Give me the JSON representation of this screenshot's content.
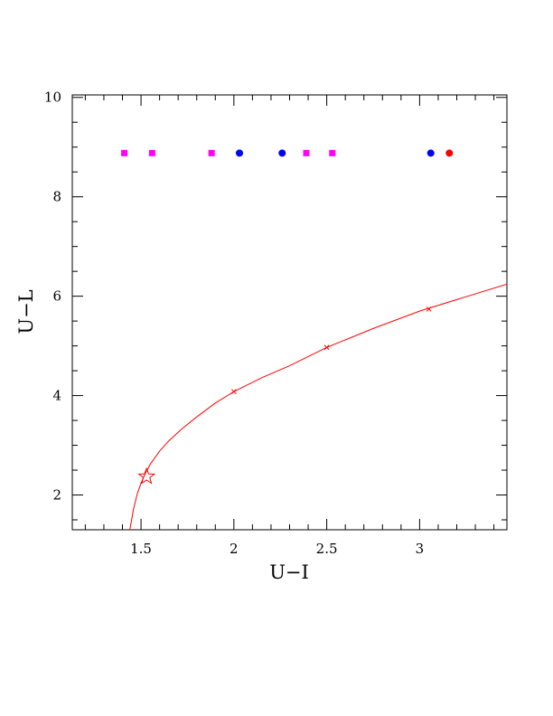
{
  "chart_data": {
    "type": "scatter",
    "xlabel": "U−I",
    "ylabel": "U−L",
    "xlim": [
      1.13,
      3.47
    ],
    "ylim": [
      1.3,
      10.05
    ],
    "x_ticks": [
      1.5,
      2,
      2.5,
      3
    ],
    "x_tick_labels": [
      "1.5",
      "2",
      "2.5",
      "3"
    ],
    "y_ticks": [
      2,
      4,
      6,
      8,
      10
    ],
    "y_tick_labels": [
      "2",
      "4",
      "6",
      "8",
      "10"
    ],
    "grid": false,
    "series": [
      {
        "marker": "square",
        "color": "#ff00ff",
        "points": [
          [
            1.41,
            8.88
          ],
          [
            1.56,
            8.88
          ],
          [
            1.88,
            8.88
          ],
          [
            2.39,
            8.88
          ],
          [
            2.53,
            8.88
          ]
        ]
      },
      {
        "marker": "circle",
        "color": "#0000ff",
        "points": [
          [
            2.03,
            8.88
          ],
          [
            2.26,
            8.88
          ],
          [
            3.06,
            8.88
          ]
        ]
      },
      {
        "marker": "circle",
        "color": "#ff0000",
        "points": [
          [
            3.16,
            8.88
          ]
        ]
      },
      {
        "marker": "line",
        "color": "#ff0000",
        "points": [
          [
            1.44,
            1.3
          ],
          [
            1.46,
            1.72
          ],
          [
            1.48,
            2.02
          ],
          [
            1.5,
            2.24
          ],
          [
            1.52,
            2.41
          ],
          [
            1.55,
            2.62
          ],
          [
            1.6,
            2.88
          ],
          [
            1.65,
            3.09
          ],
          [
            1.72,
            3.33
          ],
          [
            1.8,
            3.57
          ],
          [
            1.9,
            3.85
          ],
          [
            2.0,
            4.08
          ],
          [
            2.15,
            4.36
          ],
          [
            2.3,
            4.6
          ],
          [
            2.5,
            4.97
          ],
          [
            2.75,
            5.35
          ],
          [
            3.0,
            5.7
          ],
          [
            3.25,
            5.99
          ],
          [
            3.47,
            6.24
          ]
        ]
      },
      {
        "marker": "cross",
        "color": "#ff0000",
        "points": [
          [
            2.0,
            4.08
          ],
          [
            2.5,
            4.97
          ],
          [
            3.05,
            5.74
          ]
        ]
      },
      {
        "marker": "star",
        "color": "#ff0000",
        "points": [
          [
            1.53,
            2.37
          ]
        ]
      }
    ]
  }
}
